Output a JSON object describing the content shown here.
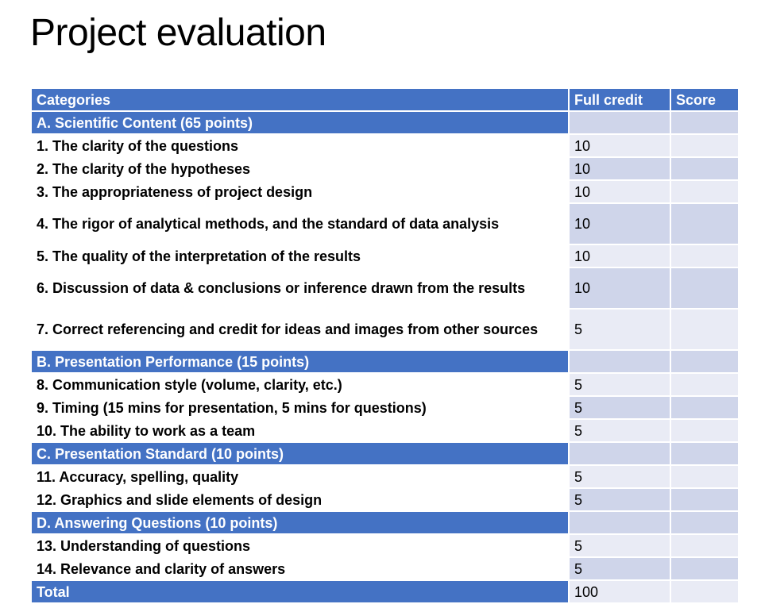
{
  "title": "Project evaluation",
  "table": {
    "headers": [
      "Categories",
      "Full credit",
      "Score"
    ],
    "rows": [
      {
        "type": "section",
        "label": "A. Scientific Content (65 points)",
        "credit": "",
        "score": ""
      },
      {
        "type": "item",
        "label": "1. The clarity of the questions",
        "credit": "10",
        "score": ""
      },
      {
        "type": "item",
        "label": "2. The clarity of the hypotheses",
        "credit": "10",
        "score": ""
      },
      {
        "type": "item",
        "label": "3. The appropriateness of project design",
        "credit": "10",
        "score": ""
      },
      {
        "type": "item",
        "label": "4. The rigor of analytical methods, and the standard of data analysis",
        "credit": "10",
        "score": ""
      },
      {
        "type": "item",
        "label": "5. The quality of the interpretation of the results",
        "credit": "10",
        "score": ""
      },
      {
        "type": "item",
        "label": "6. Discussion of data & conclusions or inference drawn from the results",
        "credit": "10",
        "score": ""
      },
      {
        "type": "item",
        "label": "7. Correct referencing and credit for ideas and images from other sources",
        "credit": "5",
        "score": ""
      },
      {
        "type": "section",
        "label": "B. Presentation Performance (15 points)",
        "credit": "",
        "score": ""
      },
      {
        "type": "item",
        "label": "8. Communication style (volume, clarity, etc.)",
        "credit": "5",
        "score": ""
      },
      {
        "type": "item",
        "label": "9. Timing (15 mins for presentation, 5 mins for questions)",
        "credit": "5",
        "score": ""
      },
      {
        "type": "item",
        "label": "10. The ability to work as a team",
        "credit": "5",
        "score": ""
      },
      {
        "type": "section",
        "label": "C. Presentation Standard (10 points)",
        "credit": "",
        "score": ""
      },
      {
        "type": "item",
        "label": "11. Accuracy, spelling, quality",
        "credit": "5",
        "score": ""
      },
      {
        "type": "item",
        "label": "12. Graphics and slide elements of design",
        "credit": "5",
        "score": ""
      },
      {
        "type": "section",
        "label": "D. Answering Questions (10 points)",
        "credit": "",
        "score": ""
      },
      {
        "type": "item",
        "label": "13. Understanding of questions",
        "credit": "5",
        "score": ""
      },
      {
        "type": "item",
        "label": "14. Relevance and clarity of answers",
        "credit": "5",
        "score": ""
      },
      {
        "type": "total",
        "label": "Total",
        "credit": "100",
        "score": ""
      }
    ]
  },
  "colors": {
    "header_bg": "#4472c4",
    "header_text": "#ffffff",
    "band_light": "#e9ebf5",
    "band_dark": "#cfd5ea"
  }
}
